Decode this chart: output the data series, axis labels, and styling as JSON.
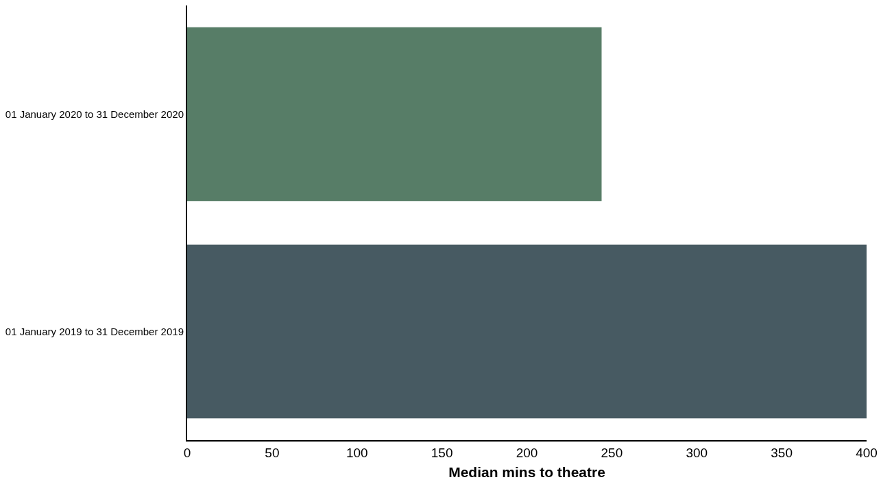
{
  "chart_data": {
    "type": "bar",
    "orientation": "horizontal",
    "xlabel": "Median mins to theatre",
    "categories": [
      "01 January 2020 to 31 December 2020",
      "01 January 2019 to 31 December 2019"
    ],
    "values": [
      244,
      400
    ],
    "colors": [
      "#577d67",
      "#475a62"
    ],
    "xlim": [
      0,
      400
    ],
    "xticks": [
      0,
      50,
      100,
      150,
      200,
      250,
      300,
      350,
      400
    ],
    "grid": false
  }
}
